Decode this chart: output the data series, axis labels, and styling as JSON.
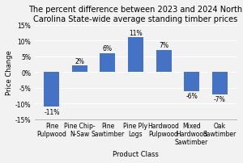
{
  "title": "The percent difference between 2023 and 2024 North\nCarolina State-wide average standing timber prices",
  "categories": [
    "Pine\nPulpwood",
    "Pine Chip-\nN-Saw",
    "Pine\nSawtimber",
    "Pine Ply\nLogs",
    "Hardwood\nPulpwood",
    "Mixed\nHardwood\nSawtimber",
    "Oak\nSawtimber"
  ],
  "values": [
    -11,
    2,
    6,
    11,
    7,
    -6,
    -7
  ],
  "bar_color": "#4472C4",
  "xlabel": "Product Class",
  "ylabel": "Price Change",
  "ylim": [
    -15,
    15
  ],
  "yticks": [
    -15,
    -10,
    -5,
    0,
    5,
    10,
    15
  ],
  "background_color": "#f2f2f2",
  "title_fontsize": 7.0,
  "label_fontsize": 6.0,
  "tick_fontsize": 5.5,
  "bar_label_fontsize": 5.5
}
